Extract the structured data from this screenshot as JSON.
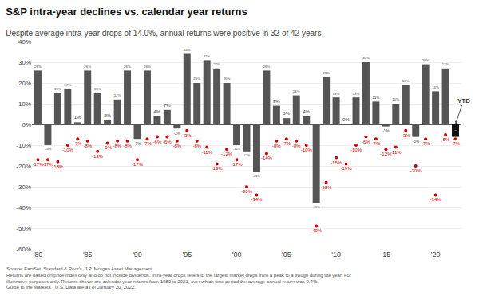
{
  "chart_data": {
    "type": "bar",
    "title": "S&P intra-year declines vs. calendar year returns",
    "subtitle": "Despite average intra-year drops of 14.0%, annual returns were positive in 32 of 42 years",
    "categories": [
      "'80",
      null,
      null,
      null,
      null,
      "'85",
      null,
      null,
      null,
      null,
      "'90",
      null,
      null,
      null,
      null,
      "'95",
      null,
      null,
      null,
      null,
      "'00",
      null,
      null,
      null,
      null,
      "'05",
      null,
      null,
      null,
      null,
      "'10",
      null,
      null,
      null,
      null,
      "'15",
      null,
      null,
      null,
      null,
      "'20",
      null,
      null
    ],
    "series": [
      {
        "type": "bar",
        "colors": [
          "#555555",
          "#555555",
          "#555555",
          "#555555",
          "#555555",
          "#555555",
          "#555555",
          "#555555",
          "#555555",
          "#555555",
          "#555555",
          "#555555",
          "#555555",
          "#555555",
          "#555555",
          "#555555",
          "#555555",
          "#555555",
          "#555555",
          "#555555",
          "#555555",
          "#555555",
          "#555555",
          "#555555",
          "#555555",
          "#555555",
          "#555555",
          "#555555",
          "#555555",
          "#555555",
          "#555555",
          "#555555",
          "#555555",
          "#555555",
          "#555555",
          "#555555",
          "#555555",
          "#555555",
          "#555555",
          "#555555",
          "#555555",
          "#555555",
          "#111111"
        ],
        "values": [
          26,
          -10,
          15,
          17,
          1,
          26,
          15,
          2,
          12,
          26,
          -7,
          26,
          4,
          7,
          -2,
          34,
          20,
          31,
          27,
          20,
          -10,
          -13,
          -23,
          26,
          9,
          3,
          14,
          4,
          -38,
          23,
          13,
          0,
          13,
          30,
          11,
          -1,
          10,
          19,
          -6,
          29,
          16,
          27,
          -6
        ],
        "value_labels": [
          "26%",
          "-10%",
          "15%",
          "17%",
          "1%",
          "26%",
          "15%",
          "2%",
          "12%",
          "26%",
          "-7%",
          "26%",
          "4%",
          "7%",
          "-2%",
          "34%",
          "20%",
          "31%",
          "27%",
          "20%",
          "-10%",
          "-13%",
          "-23%",
          "26%",
          "9%",
          "3%",
          "14%",
          "4%",
          "-38%",
          "23%",
          "13%",
          "0%",
          "13%",
          "30%",
          "11%",
          "-1%",
          "10%",
          "19%",
          "-6%",
          "29%",
          "16%",
          "27%",
          "-6%"
        ]
      },
      {
        "type": "scatter",
        "marker": "circle",
        "color": "#cc0000",
        "values": [
          -17,
          -17,
          -18,
          -10,
          -7,
          -8,
          -13,
          -9,
          -8,
          -8,
          -17,
          -7,
          -6,
          -6,
          -8,
          -3,
          -8,
          -11,
          -19,
          -12,
          -17,
          -30,
          -34,
          -14,
          -8,
          -7,
          -8,
          -10,
          -49,
          -28,
          -16,
          -19,
          -10,
          -6,
          -7,
          -12,
          -11,
          -3,
          -20,
          -7,
          -34,
          -5,
          -7
        ],
        "value_labels": [
          "-17%",
          "-17%",
          "-18%",
          "-10%",
          "-7%",
          "-8%",
          "-13%",
          "-9%",
          "-8%",
          "-8%",
          "-17%",
          "-7%",
          "-6%",
          "-6%",
          "-8%",
          "-3%",
          "-8%",
          "-11%",
          "-19%",
          "-12%",
          "-17%",
          "-30%",
          "-34%",
          "-14%",
          "-8%",
          "-7%",
          "-8%",
          "-10%",
          "-49%",
          "-28%",
          "-16%",
          "-19%",
          "-10%",
          "-6%",
          "-7%",
          "-12%",
          "-11%",
          "-3%",
          "-20%",
          "-7%",
          "-34%",
          "-5%",
          "-7%"
        ]
      }
    ],
    "data_labels": true,
    "ylim": [
      -60,
      40
    ],
    "yticks": [
      {
        "value": -60,
        "label": "-60%"
      },
      {
        "value": -50,
        "label": "-50%"
      },
      {
        "value": -40,
        "label": "-40%"
      },
      {
        "value": -30,
        "label": "-30%"
      },
      {
        "value": -20,
        "label": "-20%"
      },
      {
        "value": -10,
        "label": "-10%"
      },
      {
        "value": 0,
        "label": "0%"
      },
      {
        "value": 10,
        "label": "10%"
      },
      {
        "value": 20,
        "label": "20%"
      },
      {
        "value": 30,
        "label": "30%"
      },
      {
        "value": 40,
        "label": "40%"
      }
    ],
    "grid": true,
    "annotations": [
      "YTD"
    ],
    "footer": [
      "Source: FactSet, Standard & Poor's, J.P. Morgan Asset Management.",
      "Returns are based on price index only and do not include dividends. Intra-year drops refers to the largest market drops from a peak to a trough during the year. For",
      "illustrative purposes only. Returns shown are calendar year returns from 1980 to 2021, over which time period the average annual return was 9.4%.",
      "Guide to the Markets - U.S. Data are as of January 20, 2022."
    ]
  }
}
